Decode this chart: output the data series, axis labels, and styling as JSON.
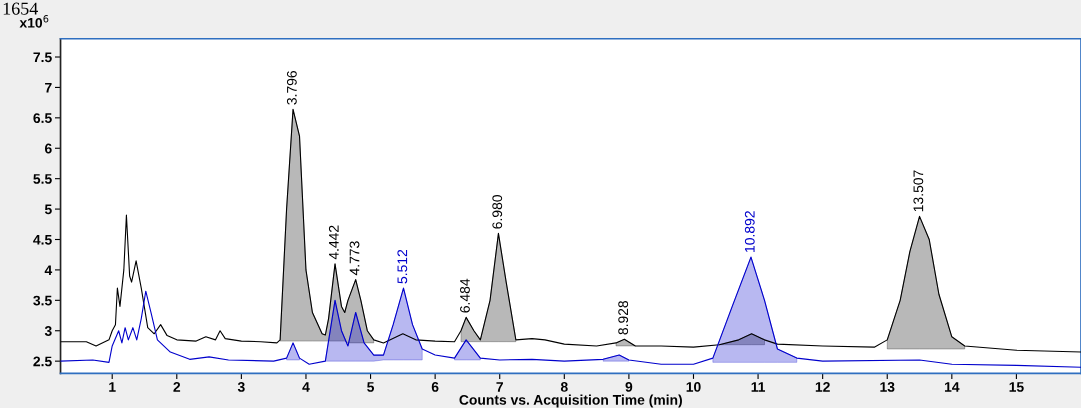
{
  "chart_data": {
    "type": "line",
    "title": "1654",
    "ylabel": "x10$^{6}$",
    "xlabel": "Counts vs. Acquisition Time (min)",
    "annotations": [
      {
        "text": "3.796",
        "x": 3.8,
        "y": 6.64
      },
      {
        "text": "4.442",
        "x": 4.45,
        "y": 4.1
      },
      {
        "text": "4.773",
        "x": 4.77,
        "y": 3.84
      },
      {
        "text": "5.512",
        "x": 5.51,
        "y": 3.7
      },
      {
        "text": "6.484",
        "x": 6.48,
        "y": 3.22
      },
      {
        "text": "6.980",
        "x": 6.98,
        "y": 4.6
      },
      {
        "text": "8.928",
        "x": 8.93,
        "y": 2.86
      },
      {
        "text": "10.892",
        "x": 10.89,
        "y": 4.21
      },
      {
        "text": "13.507",
        "x": 13.5,
        "y": 4.88
      }
    ],
    "xlim": [
      0.2,
      16.0
    ],
    "ylim": [
      2.3,
      7.8
    ],
    "xticks": [
      1,
      2,
      3,
      4,
      5,
      6,
      7,
      8,
      9,
      10,
      11,
      12,
      13,
      14,
      15
    ],
    "yticks": [
      2.5,
      3,
      3.5,
      4,
      4.5,
      5,
      5.5,
      6,
      6.5,
      7,
      7.5
    ],
    "grid": false,
    "legend": false,
    "marker": "none",
    "line_style": "solid",
    "series": [
      {
        "type": "line",
        "color": "#000000",
        "x": [
          0.2,
          0.6,
          0.75,
          0.95,
          1.0,
          1.05,
          1.08,
          1.12,
          1.18,
          1.22,
          1.27,
          1.3,
          1.37,
          1.45,
          1.55,
          1.65,
          1.75,
          1.85,
          2.0,
          2.3,
          2.45,
          2.6,
          2.67,
          2.75,
          3.0,
          3.3,
          3.55,
          3.6,
          3.7,
          3.8,
          3.9,
          4.0,
          4.1,
          4.25,
          4.3,
          4.35,
          4.45,
          4.55,
          4.6,
          4.65,
          4.77,
          4.85,
          4.95,
          5.05,
          5.2,
          5.5,
          5.7,
          6.0,
          6.3,
          6.4,
          6.48,
          6.6,
          6.7,
          6.85,
          6.98,
          7.1,
          7.25,
          7.5,
          7.7,
          8.0,
          8.5,
          8.8,
          8.93,
          9.1,
          9.5,
          10.0,
          10.4,
          10.7,
          10.9,
          11.1,
          11.3,
          12.0,
          12.8,
          13.0,
          13.2,
          13.35,
          13.5,
          13.65,
          13.8,
          14.0,
          14.2,
          15.0,
          16.0
        ],
        "values": [
          2.82,
          2.82,
          2.75,
          2.85,
          3.0,
          3.1,
          3.7,
          3.4,
          4.0,
          4.9,
          3.9,
          3.8,
          4.15,
          3.7,
          3.05,
          2.95,
          3.1,
          2.92,
          2.85,
          2.83,
          2.9,
          2.85,
          3.0,
          2.87,
          2.83,
          2.82,
          2.8,
          2.85,
          5.0,
          6.64,
          6.2,
          4.0,
          3.3,
          2.95,
          2.93,
          3.2,
          4.1,
          3.4,
          3.3,
          3.5,
          3.84,
          3.5,
          3.0,
          2.85,
          2.8,
          2.95,
          2.85,
          2.83,
          2.82,
          3.0,
          3.22,
          3.0,
          2.85,
          3.5,
          4.6,
          3.8,
          2.85,
          2.87,
          2.85,
          2.78,
          2.75,
          2.8,
          2.86,
          2.75,
          2.75,
          2.73,
          2.77,
          2.85,
          2.95,
          2.85,
          2.78,
          2.75,
          2.73,
          2.85,
          3.5,
          4.3,
          4.88,
          4.5,
          3.6,
          2.9,
          2.75,
          2.68,
          2.65
        ],
        "lower": [
          null,
          null,
          null,
          null,
          null,
          null,
          null,
          null,
          null,
          null,
          null,
          null,
          null,
          null,
          null,
          null,
          null,
          null,
          null,
          null,
          null,
          null,
          null,
          null,
          null,
          null,
          null,
          2.83,
          2.83,
          2.83,
          2.83,
          2.83,
          2.83,
          2.83,
          2.83,
          2.83,
          2.83,
          2.83,
          2.83,
          2.8,
          2.8,
          2.8,
          2.8,
          2.8,
          null,
          null,
          null,
          null,
          null,
          2.82,
          2.82,
          2.82,
          2.82,
          2.82,
          2.82,
          2.82,
          2.82,
          null,
          null,
          null,
          null,
          2.75,
          2.75,
          2.75,
          null,
          null,
          2.77,
          2.77,
          2.77,
          2.77,
          null,
          null,
          null,
          2.7,
          2.7,
          2.7,
          2.7,
          2.7,
          2.7,
          2.7,
          2.7,
          null,
          null
        ],
        "upper": [
          null,
          null,
          null,
          null,
          null,
          null,
          null,
          null,
          null,
          null,
          null,
          null,
          null,
          null,
          null,
          null,
          null,
          null,
          null,
          null,
          null,
          null,
          null,
          null,
          null,
          null,
          null,
          2.85,
          5.0,
          6.64,
          6.2,
          4.0,
          3.3,
          2.95,
          2.93,
          3.2,
          4.1,
          3.4,
          3.3,
          3.5,
          3.84,
          3.5,
          3.0,
          2.85,
          null,
          null,
          null,
          null,
          null,
          3.0,
          3.22,
          3.0,
          2.85,
          3.5,
          4.6,
          3.8,
          2.85,
          null,
          null,
          null,
          null,
          2.8,
          2.86,
          2.75,
          null,
          null,
          2.77,
          2.85,
          2.95,
          2.85,
          null,
          null,
          null,
          2.85,
          3.5,
          4.3,
          4.88,
          4.5,
          3.6,
          2.9,
          2.75,
          null,
          null
        ]
      },
      {
        "type": "line",
        "color": "#0000cc",
        "x": [
          0.2,
          0.7,
          0.95,
          1.0,
          1.1,
          1.15,
          1.2,
          1.25,
          1.32,
          1.38,
          1.45,
          1.52,
          1.6,
          1.7,
          1.9,
          2.2,
          2.5,
          2.8,
          3.5,
          3.7,
          3.8,
          3.9,
          4.05,
          4.3,
          4.45,
          4.55,
          4.65,
          4.77,
          4.9,
          5.05,
          5.2,
          5.35,
          5.51,
          5.65,
          5.8,
          6.0,
          6.3,
          6.48,
          6.7,
          7.0,
          7.5,
          8.0,
          8.6,
          8.85,
          9.0,
          9.5,
          10.0,
          10.3,
          10.6,
          10.89,
          11.1,
          11.3,
          11.6,
          12.0,
          13.5,
          14.0,
          15.0,
          16.0
        ],
        "values": [
          2.5,
          2.52,
          2.48,
          2.75,
          3.0,
          2.8,
          3.05,
          2.85,
          3.05,
          2.85,
          3.2,
          3.65,
          3.3,
          2.85,
          2.65,
          2.53,
          2.57,
          2.52,
          2.5,
          2.55,
          2.8,
          2.55,
          2.45,
          2.5,
          3.5,
          3.0,
          2.75,
          3.3,
          2.8,
          2.6,
          2.6,
          3.1,
          3.7,
          3.1,
          2.7,
          2.6,
          2.55,
          2.85,
          2.55,
          2.52,
          2.53,
          2.5,
          2.53,
          2.6,
          2.52,
          2.45,
          2.45,
          2.55,
          3.4,
          4.21,
          3.5,
          2.7,
          2.55,
          2.5,
          2.52,
          2.45,
          2.43,
          2.4
        ],
        "lower": [
          null,
          null,
          null,
          null,
          null,
          null,
          null,
          null,
          null,
          null,
          null,
          null,
          null,
          null,
          null,
          null,
          null,
          null,
          null,
          2.52,
          2.52,
          2.52,
          null,
          2.5,
          2.5,
          2.5,
          2.5,
          2.5,
          2.5,
          2.5,
          2.52,
          2.52,
          2.52,
          2.52,
          2.52,
          null,
          2.52,
          2.52,
          2.52,
          null,
          null,
          null,
          2.5,
          2.5,
          2.5,
          null,
          null,
          2.48,
          2.48,
          2.48,
          2.48,
          2.48,
          2.48,
          null,
          null,
          null,
          null,
          null
        ],
        "upper": [
          null,
          null,
          null,
          null,
          null,
          null,
          null,
          null,
          null,
          null,
          null,
          null,
          null,
          null,
          null,
          null,
          null,
          null,
          null,
          2.55,
          2.8,
          2.55,
          null,
          2.5,
          3.5,
          3.0,
          2.75,
          3.3,
          2.8,
          2.6,
          2.6,
          3.1,
          3.7,
          3.1,
          2.7,
          null,
          2.55,
          2.85,
          2.55,
          null,
          null,
          null,
          2.53,
          2.6,
          2.52,
          null,
          null,
          2.55,
          3.4,
          4.21,
          3.5,
          2.7,
          2.55,
          null,
          null,
          null,
          null,
          null
        ]
      }
    ]
  }
}
